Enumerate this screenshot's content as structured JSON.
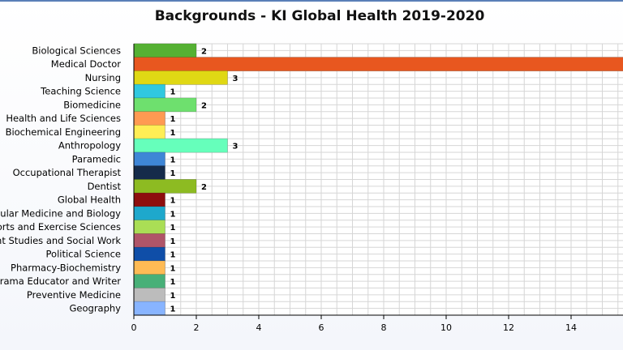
{
  "chart_data": {
    "type": "bar",
    "orientation": "horizontal",
    "title": "Backgrounds - KI Global Health 2019-2020",
    "xlim": [
      0,
      16
    ],
    "x_ticks": [
      "0",
      "2",
      "4",
      "6",
      "8",
      "10",
      "12",
      "14"
    ],
    "grid": true,
    "categories": [
      "Biological Sciences",
      "Medical Doctor",
      "Nursing",
      "Teaching Science ",
      "Biomedicine",
      "Health and Life Sciences",
      "Biochemical Engineering",
      "Anthropology",
      "Paramedic",
      "Occupational Therapist",
      "Dentist",
      "Global Health",
      "Molecular Medicine and Biology",
      "Sports and Exercise Sciences",
      "Development Studies and Social Work",
      "Political Science",
      "Pharmacy-Biochemistry",
      "Drama Educator and Writer",
      "Preventive Medicine",
      "Geography"
    ],
    "values": [
      2,
      16,
      3,
      1,
      2,
      1,
      1,
      3,
      1,
      1,
      2,
      1,
      1,
      1,
      1,
      1,
      1,
      1,
      1,
      1
    ],
    "data_labels": [
      "2",
      "",
      "3",
      "1",
      "2",
      "1",
      "1",
      "3",
      "1",
      "1",
      "2",
      "1",
      "1",
      "1",
      "1",
      "1",
      "1",
      "1",
      "1",
      "1"
    ],
    "colors": [
      "#55b133",
      "#e8571f",
      "#e0d814",
      "#30c8e0",
      "#6ee06e",
      "#ff9a52",
      "#ffee55",
      "#66ffbb",
      "#3e86d6",
      "#152b4a",
      "#8dbb22",
      "#8e0e0e",
      "#1ea8cc",
      "#aade55",
      "#b05568",
      "#0f4ea8",
      "#ffbb55",
      "#48b078",
      "#bcbcbc",
      "#88b4ff"
    ]
  }
}
